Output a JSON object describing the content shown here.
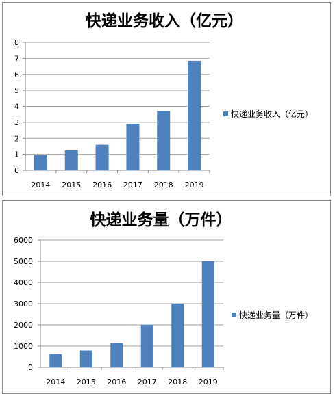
{
  "colors": {
    "bar": "#4f81bd",
    "grid": "#a6a6a6",
    "axis": "#868686",
    "text": "#000000"
  },
  "chart_data": [
    {
      "type": "bar",
      "title": "快递业务收入（亿元）",
      "categories": [
        "2014",
        "2015",
        "2016",
        "2017",
        "2018",
        "2019"
      ],
      "series": [
        {
          "name": "快递业务收入（亿元）",
          "values": [
            0.95,
            1.25,
            1.6,
            2.9,
            3.7,
            6.85
          ]
        }
      ],
      "yticks": [
        "0",
        "1",
        "2",
        "3",
        "4",
        "5",
        "6",
        "7",
        "8"
      ],
      "ylim": [
        0,
        8
      ],
      "grid": true,
      "legend": "right"
    },
    {
      "type": "bar",
      "title": "快递业务量（万件）",
      "categories": [
        "2014",
        "2015",
        "2016",
        "2017",
        "2018",
        "2019"
      ],
      "series": [
        {
          "name": "快递业务量（万件）",
          "values": [
            620,
            790,
            1140,
            2000,
            3000,
            5000
          ]
        }
      ],
      "yticks": [
        "0",
        "1000",
        "2000",
        "3000",
        "4000",
        "5000",
        "6000"
      ],
      "ylim": [
        0,
        6000
      ],
      "grid": true,
      "legend": "right"
    }
  ]
}
